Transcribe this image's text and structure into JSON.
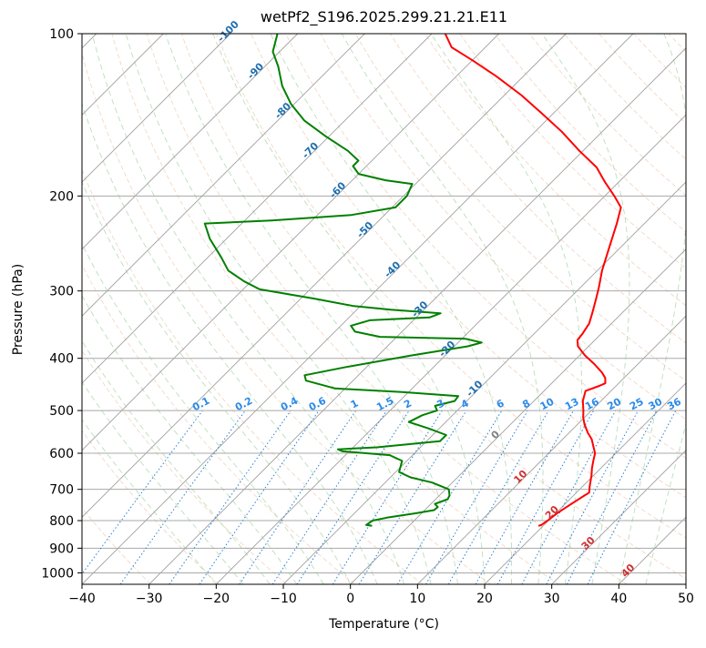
{
  "chart_data": {
    "type": "skew-t log-p diagram",
    "title": "wetPf2_S196.2025.299.21.21.E11",
    "xlabel": "Temperature (°C)",
    "ylabel": "Pressure (hPa)",
    "xlim": [
      -40,
      50
    ],
    "ylim": [
      1050,
      100
    ],
    "yscale": "log",
    "grid": true,
    "xticks": [
      -40,
      -30,
      -20,
      -10,
      0,
      10,
      20,
      30,
      40,
      50
    ],
    "yticks": [
      100,
      200,
      300,
      400,
      500,
      600,
      700,
      800,
      900,
      1000
    ],
    "series": [
      {
        "name": "temperature",
        "color": "#ff0000",
        "points": [
          [
            19.3,
            818
          ],
          [
            19.6,
            815
          ],
          [
            19.9,
            800
          ],
          [
            20.2,
            775
          ],
          [
            20.8,
            750
          ],
          [
            21.6,
            720
          ],
          [
            21.9,
            710
          ],
          [
            21.0,
            690
          ],
          [
            19.7,
            660
          ],
          [
            18.7,
            640
          ],
          [
            17.8,
            620
          ],
          [
            16.9,
            600
          ],
          [
            15.8,
            585
          ],
          [
            14.3,
            565
          ],
          [
            12.8,
            550
          ],
          [
            11.0,
            530
          ],
          [
            9.8,
            515
          ],
          [
            8.8,
            500
          ],
          [
            7.3,
            480
          ],
          [
            6.2,
            460
          ],
          [
            7.5,
            450
          ],
          [
            8.0,
            445
          ],
          [
            7.2,
            435
          ],
          [
            5.9,
            425
          ],
          [
            3.5,
            410
          ],
          [
            0.8,
            395
          ],
          [
            -1.6,
            380
          ],
          [
            -2.6,
            370
          ],
          [
            -2.8,
            360
          ],
          [
            -3.3,
            345
          ],
          [
            -4.4,
            330
          ],
          [
            -6.0,
            310
          ],
          [
            -7.3,
            295
          ],
          [
            -9.3,
            275
          ],
          [
            -11.6,
            250
          ],
          [
            -14.1,
            225
          ],
          [
            -15.9,
            210
          ],
          [
            -18.6,
            200
          ],
          [
            -22.2,
            188
          ],
          [
            -25.5,
            177
          ],
          [
            -30.5,
            165
          ],
          [
            -36.0,
            152
          ],
          [
            -42.0,
            140
          ],
          [
            -47.5,
            130
          ],
          [
            -54.0,
            120
          ],
          [
            -60.0,
            112
          ],
          [
            -65.0,
            106
          ],
          [
            -68.0,
            100
          ]
        ]
      },
      {
        "name": "dewpoint",
        "color": "#008000",
        "points": [
          [
            -5.5,
            818
          ],
          [
            -6.5,
            815
          ],
          [
            -6.2,
            800
          ],
          [
            -4.5,
            790
          ],
          [
            -0.8,
            775
          ],
          [
            1.4,
            765
          ],
          [
            1.5,
            755
          ],
          [
            0.6,
            745
          ],
          [
            1.8,
            730
          ],
          [
            1.5,
            718
          ],
          [
            0.5,
            700
          ],
          [
            -3.0,
            680
          ],
          [
            -7.0,
            665
          ],
          [
            -9.5,
            650
          ],
          [
            -10.7,
            620
          ],
          [
            -13.4,
            605
          ],
          [
            -21.0,
            595
          ],
          [
            -22.0,
            590
          ],
          [
            -16.5,
            585
          ],
          [
            -8.0,
            570
          ],
          [
            -8.0,
            555
          ],
          [
            -11.5,
            540
          ],
          [
            -15.5,
            525
          ],
          [
            -14.5,
            510
          ],
          [
            -13.0,
            500
          ],
          [
            -14.0,
            490
          ],
          [
            -11.8,
            480
          ],
          [
            -12.0,
            470
          ],
          [
            -21.0,
            462
          ],
          [
            -31.5,
            455
          ],
          [
            -37.0,
            440
          ],
          [
            -38.0,
            430
          ],
          [
            -33.0,
            415
          ],
          [
            -25.0,
            395
          ],
          [
            -18.0,
            380
          ],
          [
            -16.5,
            374
          ],
          [
            -19.5,
            368
          ],
          [
            -32.5,
            365
          ],
          [
            -37.0,
            357
          ],
          [
            -38.5,
            348
          ],
          [
            -36.5,
            340
          ],
          [
            -28.0,
            336
          ],
          [
            -27.0,
            330
          ],
          [
            -35.0,
            325
          ],
          [
            -41.0,
            320
          ],
          [
            -48.0,
            310
          ],
          [
            -57.5,
            298
          ],
          [
            -61.0,
            288
          ],
          [
            -65.0,
            275
          ],
          [
            -68.0,
            260
          ],
          [
            -72.5,
            240
          ],
          [
            -75.5,
            225
          ],
          [
            -66.0,
            222
          ],
          [
            -55.0,
            217
          ],
          [
            -49.5,
            210
          ],
          [
            -49.5,
            200
          ],
          [
            -50.5,
            190
          ],
          [
            -55.0,
            187
          ],
          [
            -60.0,
            182
          ],
          [
            -62.0,
            176
          ],
          [
            -62.0,
            172
          ],
          [
            -65.0,
            165
          ],
          [
            -70.5,
            155
          ],
          [
            -76.0,
            145
          ],
          [
            -80.5,
            135
          ],
          [
            -84.5,
            125
          ],
          [
            -88.0,
            115
          ],
          [
            -91.0,
            108
          ],
          [
            -93.0,
            100
          ]
        ]
      }
    ],
    "mixing_ratio_labels": [
      "0.1",
      "0.2",
      "0.4",
      "0.6",
      "1",
      "1.5",
      "2",
      "3",
      "4",
      "6",
      "8",
      "10",
      "13",
      "16",
      "20",
      "25",
      "30",
      "36"
    ],
    "mixing_ratio_values": [
      0.1,
      0.2,
      0.4,
      0.6,
      1,
      1.5,
      2,
      3,
      4,
      6,
      8,
      10,
      13,
      16,
      20,
      25,
      30,
      36
    ],
    "moist_adiabat_labels": [
      "-100",
      "-90",
      "-80",
      "-70",
      "-60",
      "-50",
      "-40",
      "-30",
      "-20",
      "-10",
      "0",
      "10",
      "20",
      "30",
      "40"
    ],
    "moist_adiabat_values": [
      -100,
      -90,
      -80,
      -70,
      -60,
      -50,
      -40,
      -30,
      -20,
      -10,
      0,
      10,
      20,
      30,
      40
    ]
  }
}
